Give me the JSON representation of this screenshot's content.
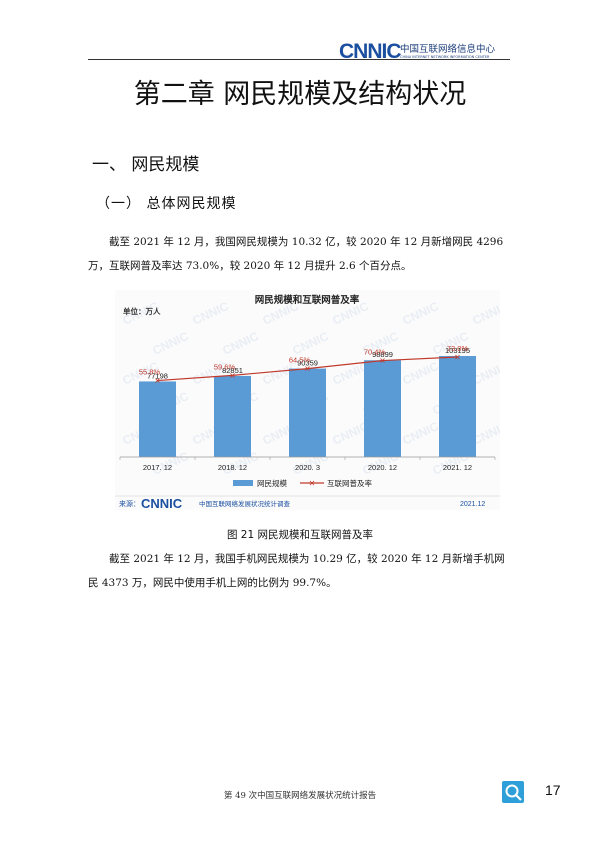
{
  "header": {
    "logo": "CNNIC",
    "org_cn": "中国互联网络信息中心",
    "org_en": "CHINA INTERNET NETWORK INFORMATION CENTER"
  },
  "chapter_title": "第二章 网民规模及结构状况",
  "section_heading": "一、 网民规模",
  "subsection_heading": "（一）    总体网民规模",
  "paragraph1": "截至 2021 年 12 月，我国网民规模为 10.32 亿，较 2020 年 12 月新增网民 4296 万，互联网普及率达 73.0%，较 2020 年 12 月提升 2.6 个百分点。",
  "figure": {
    "unit_label": "单位：万人",
    "source_label": "来源：",
    "source_logo": "CNNIC",
    "source_text": "中国互联网络发展状况统计调查",
    "source_date": "2021.12",
    "watermark": "CNNIC"
  },
  "chart_data": {
    "type": "bar",
    "title": "网民规模和互联网普及率",
    "categories": [
      "2017. 12",
      "2018. 12",
      "2020. 3",
      "2020. 12",
      "2021. 12"
    ],
    "series": [
      {
        "name": "网民规模",
        "type": "bar",
        "values": [
          77198,
          82851,
          90359,
          98899,
          103195
        ],
        "value_labels": [
          "77198",
          "82851",
          "90359",
          "98899",
          "103195"
        ]
      },
      {
        "name": "互联网普及率",
        "type": "line",
        "values": [
          55.8,
          59.6,
          64.5,
          70.4,
          73.0
        ],
        "value_labels": [
          "55.8%",
          "59.6%",
          "64.5%",
          "70.4%",
          "73.0%"
        ]
      }
    ],
    "ylabel": "单位：万人",
    "ylim": [
      0,
      140000
    ],
    "y2lim": [
      0,
      100
    ],
    "legend": "bottom",
    "grid": false,
    "colors": {
      "bar": "#5b9bd5",
      "line": "#c0392b",
      "axis": "#999999"
    }
  },
  "figure_caption": "图 21   网民规模和互联网普及率",
  "paragraph2": "截至 2021 年 12 月，我国手机网民规模为 10.29 亿，较 2020 年 12 月新增手机网民 4373 万，网民中使用手机上网的比例为 99.7%。",
  "footer": {
    "text": "第 49 次中国互联网络发展状况统计报告",
    "page_number": "17",
    "icon": "report-search-icon"
  }
}
